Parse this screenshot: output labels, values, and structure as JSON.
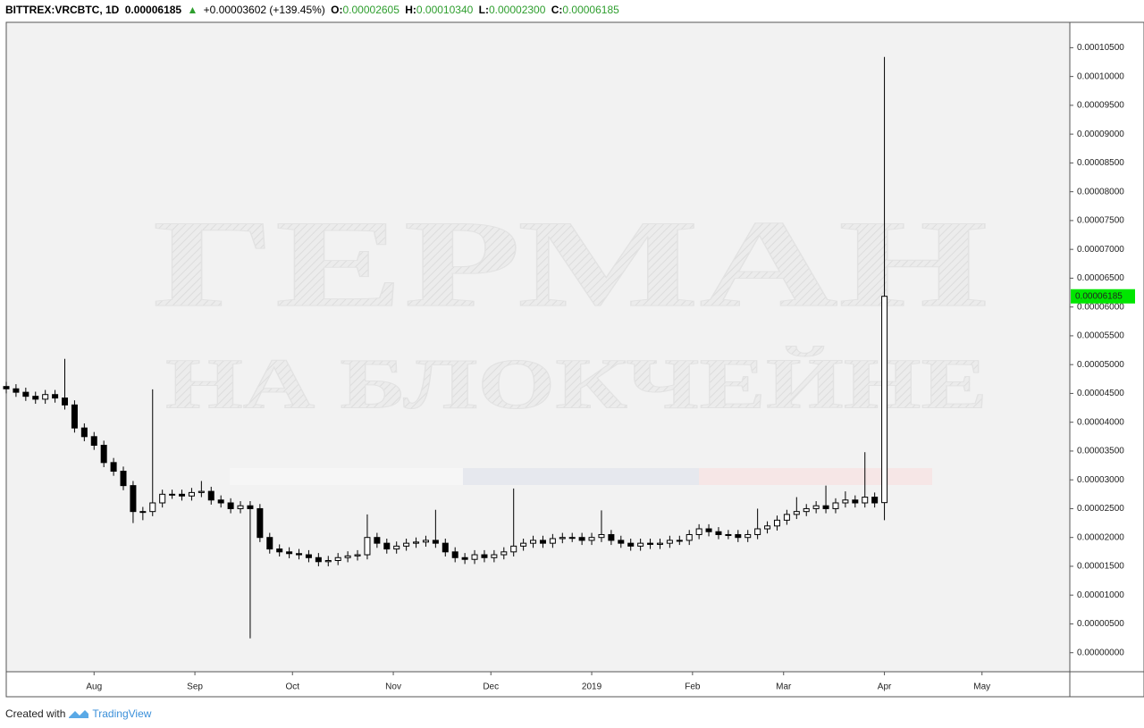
{
  "header": {
    "symbol": "BITTREX:VRCBTC, 1D",
    "last": "0.00006185",
    "arrow": "▲",
    "change": "+0.00003602 (+139.45%)",
    "o_key": "O:",
    "o": "0.00002605",
    "h_key": "H:",
    "h": "0.00010340",
    "l_key": "L:",
    "l": "0.00002300",
    "c_key": "C:",
    "c": "0.00006185"
  },
  "chart_data": {
    "type": "candlestick",
    "watermark": [
      "ГЕРМАН",
      "НА БЛОКЧЕЙНЕ"
    ],
    "x": [
      -27,
      -24,
      -21,
      -18,
      -15,
      -12,
      -9,
      -6,
      -3,
      0,
      3,
      6,
      9,
      12,
      15,
      18,
      21,
      24,
      27,
      30,
      33,
      36,
      39,
      42,
      45,
      48,
      51,
      54,
      57,
      60,
      63,
      66,
      69,
      72,
      75,
      78,
      81,
      84,
      87,
      90,
      93,
      96,
      99,
      102,
      105,
      108,
      111,
      114,
      117,
      120,
      123,
      126,
      129,
      132,
      135,
      138,
      141,
      144,
      147,
      150,
      153,
      156,
      159,
      162,
      165,
      168,
      171,
      174,
      177,
      180,
      183,
      186,
      189,
      192,
      195,
      198,
      201,
      204,
      207,
      210,
      213,
      216,
      219,
      222,
      225,
      228,
      231,
      234,
      237,
      240,
      243
    ],
    "open": [
      4.62e-05,
      4.58e-05,
      4.52e-05,
      4.45e-05,
      4.4e-05,
      4.48e-05,
      4.42e-05,
      4.3e-05,
      3.9e-05,
      3.75e-05,
      3.6e-05,
      3.3e-05,
      3.15e-05,
      2.9e-05,
      2.45e-05,
      2.45e-05,
      2.6e-05,
      2.75e-05,
      2.75e-05,
      2.72e-05,
      2.78e-05,
      2.8e-05,
      2.65e-05,
      2.6e-05,
      2.5e-05,
      2.55e-05,
      2.5e-05,
      2e-05,
      1.8e-05,
      1.75e-05,
      1.72e-05,
      1.7e-05,
      1.65e-05,
      1.58e-05,
      1.6e-05,
      1.65e-05,
      1.68e-05,
      1.7e-05,
      2e-05,
      1.9e-05,
      1.8e-05,
      1.85e-05,
      1.9e-05,
      1.92e-05,
      1.95e-05,
      1.9e-05,
      1.75e-05,
      1.65e-05,
      1.62e-05,
      1.7e-05,
      1.65e-05,
      1.7e-05,
      1.75e-05,
      1.85e-05,
      1.9e-05,
      1.95e-05,
      1.9e-05,
      1.98e-05,
      2e-05,
      2e-05,
      1.95e-05,
      2e-05,
      2.05e-05,
      1.95e-05,
      1.9e-05,
      1.85e-05,
      1.9e-05,
      1.88e-05,
      1.9e-05,
      1.95e-05,
      1.95e-05,
      2.05e-05,
      2.15e-05,
      2.1e-05,
      2.05e-05,
      2.05e-05,
      2e-05,
      2.05e-05,
      2.15e-05,
      2.2e-05,
      2.3e-05,
      2.4e-05,
      2.45e-05,
      2.5e-05,
      2.55e-05,
      2.5e-05,
      2.6e-05,
      2.65e-05,
      2.6e-05,
      2.7e-05,
      2.605e-05
    ],
    "high": [
      4.7e-05,
      4.66e-05,
      4.6e-05,
      4.53e-05,
      4.56e-05,
      4.56e-05,
      5.1e-05,
      4.38e-05,
      3.98e-05,
      3.83e-05,
      3.68e-05,
      3.38e-05,
      3.23e-05,
      2.98e-05,
      2.53e-05,
      4.57e-05,
      2.83e-05,
      2.83e-05,
      2.83e-05,
      2.86e-05,
      2.98e-05,
      2.88e-05,
      2.73e-05,
      2.68e-05,
      2.63e-05,
      2.63e-05,
      2.58e-05,
      2.08e-05,
      1.88e-05,
      1.83e-05,
      1.8e-05,
      1.78e-05,
      1.73e-05,
      1.68e-05,
      1.73e-05,
      1.76e-05,
      1.78e-05,
      2.4e-05,
      2.08e-05,
      1.98e-05,
      1.93e-05,
      1.98e-05,
      2e-05,
      2.03e-05,
      2.48e-05,
      1.98e-05,
      1.83e-05,
      1.73e-05,
      1.78e-05,
      1.78e-05,
      1.78e-05,
      1.83e-05,
      2.85e-05,
      1.98e-05,
      2.03e-05,
      2.03e-05,
      2.06e-05,
      2.08e-05,
      2.08e-05,
      2.08e-05,
      2.08e-05,
      2.47e-05,
      2.13e-05,
      2.03e-05,
      1.98e-05,
      1.98e-05,
      1.98e-05,
      1.98e-05,
      2.03e-05,
      2.03e-05,
      2.13e-05,
      2.23e-05,
      2.23e-05,
      2.18e-05,
      2.13e-05,
      2.13e-05,
      2.13e-05,
      2.5e-05,
      2.28e-05,
      2.38e-05,
      2.48e-05,
      2.7e-05,
      2.58e-05,
      2.63e-05,
      2.9e-05,
      2.68e-05,
      2.8e-05,
      2.73e-05,
      3.48e-05,
      2.78e-05,
      0.0001034
    ],
    "low": [
      4.5e-05,
      4.44e-05,
      4.37e-05,
      4.32e-05,
      4.32e-05,
      4.34e-05,
      4.22e-05,
      3.82e-05,
      3.67e-05,
      3.52e-05,
      3.22e-05,
      3.07e-05,
      2.82e-05,
      2.25e-05,
      2.3e-05,
      2.37e-05,
      2.52e-05,
      2.67e-05,
      2.64e-05,
      2.64e-05,
      2.7e-05,
      2.57e-05,
      2.52e-05,
      2.42e-05,
      2.42e-05,
      2.5e-06,
      1.92e-05,
      1.72e-05,
      1.67e-05,
      1.64e-05,
      1.62e-05,
      1.57e-05,
      1.5e-05,
      1.5e-05,
      1.52e-05,
      1.57e-05,
      1.6e-05,
      1.62e-05,
      1.82e-05,
      1.72e-05,
      1.72e-05,
      1.77e-05,
      1.82e-05,
      1.84e-05,
      1.82e-05,
      1.67e-05,
      1.57e-05,
      1.54e-05,
      1.54e-05,
      1.57e-05,
      1.57e-05,
      1.62e-05,
      1.67e-05,
      1.77e-05,
      1.82e-05,
      1.82e-05,
      1.82e-05,
      1.9e-05,
      1.92e-05,
      1.87e-05,
      1.87e-05,
      1.92e-05,
      1.87e-05,
      1.82e-05,
      1.77e-05,
      1.77e-05,
      1.8e-05,
      1.8e-05,
      1.82e-05,
      1.87e-05,
      1.87e-05,
      1.97e-05,
      2.02e-05,
      1.97e-05,
      1.97e-05,
      1.92e-05,
      1.92e-05,
      1.97e-05,
      2.07e-05,
      2.12e-05,
      2.22e-05,
      2.32e-05,
      2.37e-05,
      2.42e-05,
      2.42e-05,
      2.42e-05,
      2.52e-05,
      2.52e-05,
      2.52e-05,
      2.52e-05,
      2.3e-05
    ],
    "close": [
      4.58e-05,
      4.52e-05,
      4.45e-05,
      4.4e-05,
      4.48e-05,
      4.42e-05,
      4.3e-05,
      3.9e-05,
      3.75e-05,
      3.6e-05,
      3.3e-05,
      3.15e-05,
      2.9e-05,
      2.45e-05,
      2.45e-05,
      2.6e-05,
      2.75e-05,
      2.75e-05,
      2.72e-05,
      2.78e-05,
      2.8e-05,
      2.65e-05,
      2.6e-05,
      2.5e-05,
      2.55e-05,
      2.5e-05,
      2e-05,
      1.8e-05,
      1.75e-05,
      1.72e-05,
      1.7e-05,
      1.65e-05,
      1.58e-05,
      1.6e-05,
      1.65e-05,
      1.68e-05,
      1.7e-05,
      2e-05,
      1.9e-05,
      1.8e-05,
      1.85e-05,
      1.9e-05,
      1.92e-05,
      1.95e-05,
      1.9e-05,
      1.75e-05,
      1.65e-05,
      1.62e-05,
      1.7e-05,
      1.65e-05,
      1.7e-05,
      1.75e-05,
      1.85e-05,
      1.9e-05,
      1.95e-05,
      1.9e-05,
      1.98e-05,
      2e-05,
      2e-05,
      1.95e-05,
      2e-05,
      2.05e-05,
      1.95e-05,
      1.9e-05,
      1.85e-05,
      1.9e-05,
      1.88e-05,
      1.9e-05,
      1.95e-05,
      1.95e-05,
      2.05e-05,
      2.15e-05,
      2.1e-05,
      2.05e-05,
      2.05e-05,
      2e-05,
      2.05e-05,
      2.15e-05,
      2.2e-05,
      2.3e-05,
      2.4e-05,
      2.45e-05,
      2.5e-05,
      2.55e-05,
      2.5e-05,
      2.6e-05,
      2.65e-05,
      2.6e-05,
      2.7e-05,
      2.6e-05,
      6.185e-05
    ],
    "up_color": "#ffffff",
    "down_color": "#000000",
    "wick_color": "#000000",
    "last_label": "0.00006185",
    "last_color": "#00e600",
    "xlim": [
      -27,
      300
    ],
    "xticks": [
      {
        "value": 0,
        "label": "Aug"
      },
      {
        "value": 31,
        "label": "Sep"
      },
      {
        "value": 61,
        "label": "Oct"
      },
      {
        "value": 92,
        "label": "Nov"
      },
      {
        "value": 122,
        "label": "Dec"
      },
      {
        "value": 153,
        "label": "2019"
      },
      {
        "value": 184,
        "label": "Feb"
      },
      {
        "value": 212,
        "label": "Mar"
      },
      {
        "value": 243,
        "label": "Apr"
      },
      {
        "value": 273,
        "label": "May"
      }
    ],
    "ylim": [
      -3.3e-06,
      0.0001094
    ],
    "yticks": [
      {
        "value": 0,
        "label": "0.00000000"
      },
      {
        "value": 5e-06,
        "label": "0.00000500"
      },
      {
        "value": 1e-05,
        "label": "0.00001000"
      },
      {
        "value": 1.5e-05,
        "label": "0.00001500"
      },
      {
        "value": 2e-05,
        "label": "0.00002000"
      },
      {
        "value": 2.5e-05,
        "label": "0.00002500"
      },
      {
        "value": 3e-05,
        "label": "0.00003000"
      },
      {
        "value": 3.5e-05,
        "label": "0.00003500"
      },
      {
        "value": 4e-05,
        "label": "0.00004000"
      },
      {
        "value": 4.5e-05,
        "label": "0.00004500"
      },
      {
        "value": 5e-05,
        "label": "0.00005000"
      },
      {
        "value": 5.5e-05,
        "label": "0.00005500"
      },
      {
        "value": 6e-05,
        "label": "0.00006000"
      },
      {
        "value": 6.5e-05,
        "label": "0.00006500"
      },
      {
        "value": 7e-05,
        "label": "0.00007000"
      },
      {
        "value": 7.5e-05,
        "label": "0.00007500"
      },
      {
        "value": 8e-05,
        "label": "0.00008000"
      },
      {
        "value": 8.5e-05,
        "label": "0.00008500"
      },
      {
        "value": 9e-05,
        "label": "0.00009000"
      },
      {
        "value": 9.5e-05,
        "label": "0.00009500"
      },
      {
        "value": 0.0001,
        "label": "0.00010000"
      },
      {
        "value": 0.000105,
        "label": "0.00010500"
      }
    ],
    "grid": false
  },
  "footer": {
    "created": "Created with",
    "brand": "TradingView"
  }
}
